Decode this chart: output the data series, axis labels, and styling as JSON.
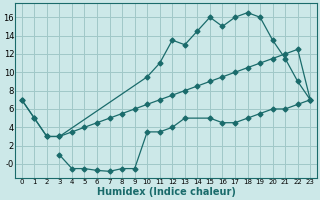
{
  "xlabel": "Humidex (Indice chaleur)",
  "background_color": "#cce8e8",
  "grid_color": "#a0c8c8",
  "line_color": "#1a6b6b",
  "xlim": [
    -0.5,
    23.5
  ],
  "ylim": [
    -1.5,
    17.5
  ],
  "xticks": [
    0,
    1,
    2,
    3,
    4,
    5,
    6,
    7,
    8,
    9,
    10,
    11,
    12,
    13,
    14,
    15,
    16,
    17,
    18,
    19,
    20,
    21,
    22,
    23
  ],
  "yticks": [
    0,
    2,
    4,
    6,
    8,
    10,
    12,
    14,
    16
  ],
  "ytick_labels": [
    "-0",
    "2",
    "4",
    "6",
    "8",
    "10",
    "12",
    "14",
    "16"
  ],
  "line1_x": [
    0,
    1,
    2,
    3,
    10,
    11,
    12,
    13,
    14,
    15,
    16,
    17,
    18,
    19,
    20,
    21,
    22,
    23
  ],
  "line1_y": [
    7,
    5,
    3,
    3,
    9.5,
    11,
    13.5,
    13,
    14.5,
    16,
    15,
    16,
    16.5,
    16,
    13.5,
    11.5,
    9,
    7
  ],
  "line2_x": [
    0,
    1,
    2,
    3,
    4,
    5,
    6,
    7,
    8,
    9,
    10,
    11,
    12,
    13,
    14,
    15,
    16,
    17,
    18,
    19,
    20,
    21,
    22,
    23
  ],
  "line2_y": [
    7,
    5,
    3,
    3,
    3.5,
    4,
    4.5,
    5,
    5.5,
    6,
    6.5,
    7,
    7.5,
    8,
    8.5,
    9,
    9.5,
    10,
    10.5,
    11,
    11.5,
    12,
    12.5,
    7
  ],
  "line3_x": [
    3,
    4,
    5,
    6,
    7,
    8,
    9,
    10,
    11,
    12,
    13,
    15,
    16,
    17,
    18,
    19,
    20,
    21,
    22,
    23
  ],
  "line3_y": [
    1,
    -0.5,
    -0.5,
    -0.7,
    -0.8,
    -0.5,
    -0.5,
    3.5,
    3.5,
    4,
    5,
    5,
    4.5,
    4.5,
    5,
    5.5,
    6,
    6,
    6.5,
    7
  ],
  "xlabel_fontsize": 7,
  "tick_fontsize_x": 5,
  "tick_fontsize_y": 6
}
